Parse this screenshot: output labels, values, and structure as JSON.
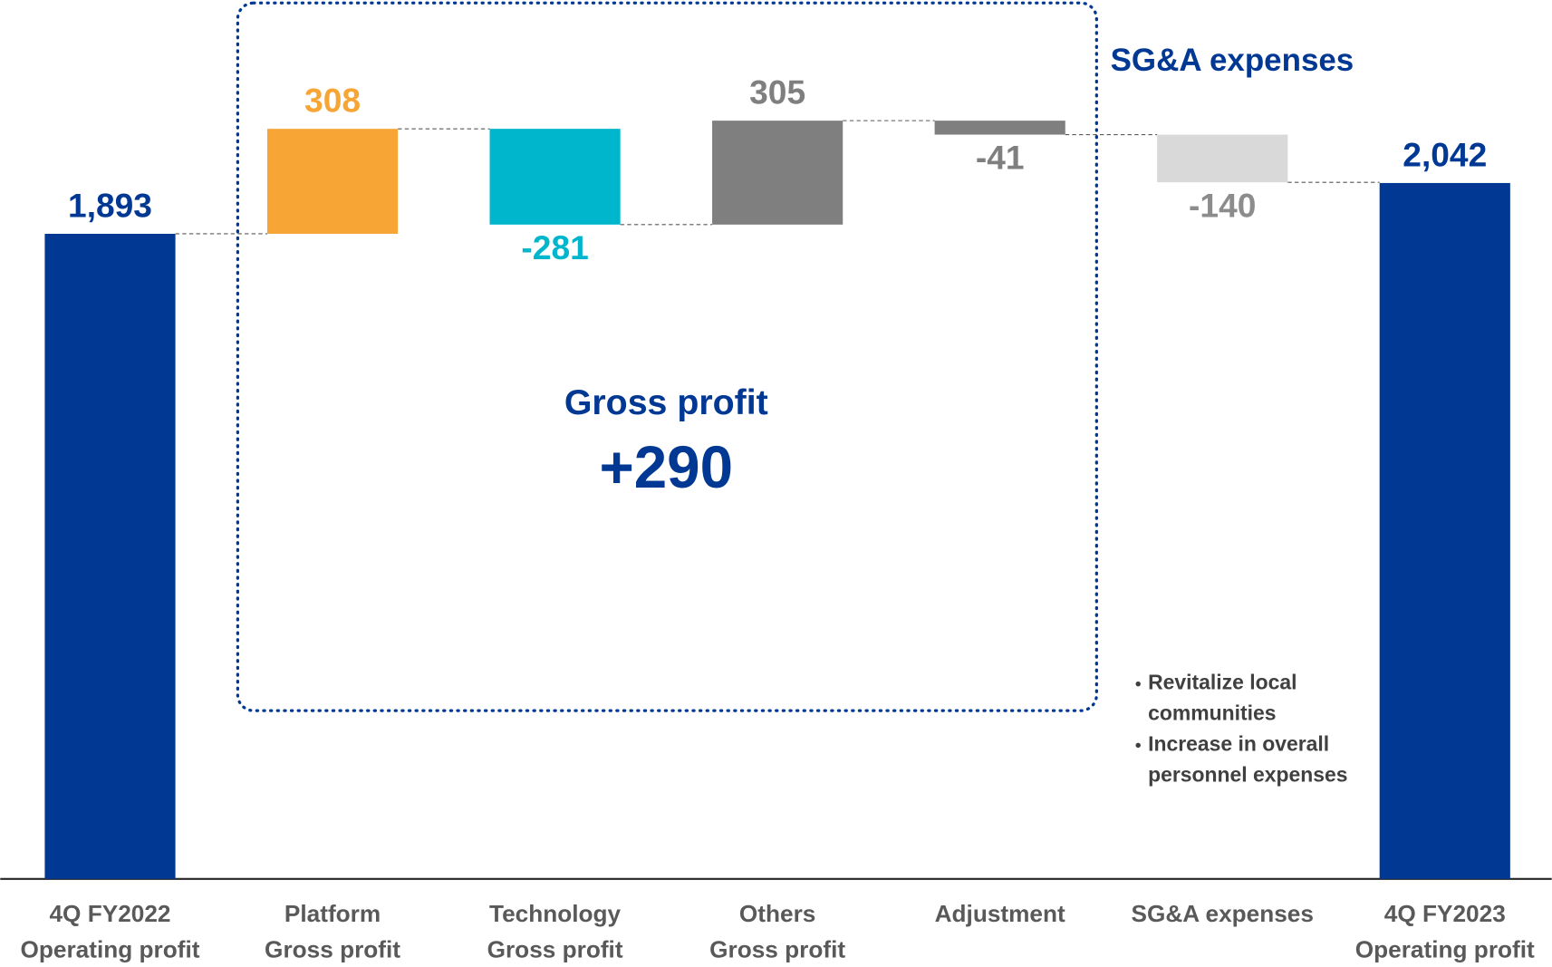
{
  "chart_data": {
    "type": "waterfall",
    "categories": [
      [
        "4Q FY2022",
        "Operating profit"
      ],
      [
        "Platform",
        "Gross profit"
      ],
      [
        "Technology",
        "Gross profit"
      ],
      [
        "Others",
        "Gross profit"
      ],
      [
        "Adjustment"
      ],
      [
        "SG&A expenses"
      ],
      [
        "4Q FY2023",
        "Operating profit"
      ]
    ],
    "values": [
      1893,
      308,
      -281,
      305,
      -41,
      -140,
      2042
    ],
    "value_labels": [
      "1,893",
      "308",
      "-281",
      "305",
      "-41",
      "-140",
      "2,042"
    ],
    "totals": [
      true,
      false,
      false,
      false,
      false,
      false,
      true
    ],
    "colors": [
      "#003893",
      "#f7a535",
      "#00b6cc",
      "#7f7f7f",
      "#7f7f7f",
      "#d9d9d9",
      "#003893"
    ],
    "label_colors": [
      "#003893",
      "#f7a535",
      "#00b6cc",
      "#7f7f7f",
      "#7f7f7f",
      "#8c8c8c",
      "#003893"
    ],
    "ylim": [
      0,
      2550
    ],
    "annotations": {
      "box_title": "SG&A expenses",
      "gross_profit_label": "Gross profit",
      "gross_profit_value": "+290",
      "bullets": [
        [
          "Revitalize local",
          "communities"
        ],
        [
          "Increase in overall",
          "personnel expenses"
        ]
      ]
    }
  }
}
